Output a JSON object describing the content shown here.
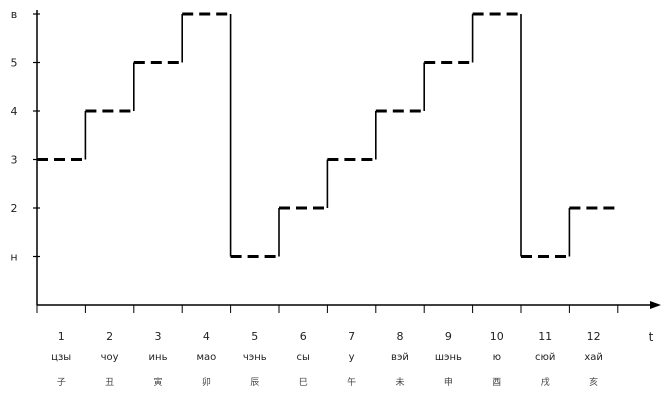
{
  "chart_data": {
    "type": "line",
    "step": true,
    "title": "",
    "xlabel": "t",
    "ylabel": "",
    "ylim": [
      0,
      6
    ],
    "grid": false,
    "y_ticks": [
      {
        "value": 1,
        "label": "н"
      },
      {
        "value": 2,
        "label": "2"
      },
      {
        "value": 3,
        "label": "3"
      },
      {
        "value": 4,
        "label": "4"
      },
      {
        "value": 5,
        "label": "5"
      },
      {
        "value": 6,
        "label": "в"
      }
    ],
    "categories": [
      {
        "num": "1",
        "name": "цзы",
        "char": "子"
      },
      {
        "num": "2",
        "name": "чоу",
        "char": "丑"
      },
      {
        "num": "3",
        "name": "инь",
        "char": "寅"
      },
      {
        "num": "4",
        "name": "мао",
        "char": "卯"
      },
      {
        "num": "5",
        "name": "чэнь",
        "char": "辰"
      },
      {
        "num": "6",
        "name": "сы",
        "char": "巳"
      },
      {
        "num": "7",
        "name": "у",
        "char": "午"
      },
      {
        "num": "8",
        "name": "вэй",
        "char": "未"
      },
      {
        "num": "9",
        "name": "шэнь",
        "char": "申"
      },
      {
        "num": "10",
        "name": "ю",
        "char": "酉"
      },
      {
        "num": "11",
        "name": "сюй",
        "char": "戌"
      },
      {
        "num": "12",
        "name": "хай",
        "char": "亥"
      }
    ],
    "series": [
      {
        "values": [
          3,
          4,
          5,
          6,
          1,
          2,
          3,
          4,
          5,
          6,
          1,
          2
        ]
      }
    ],
    "color": "#000000"
  }
}
